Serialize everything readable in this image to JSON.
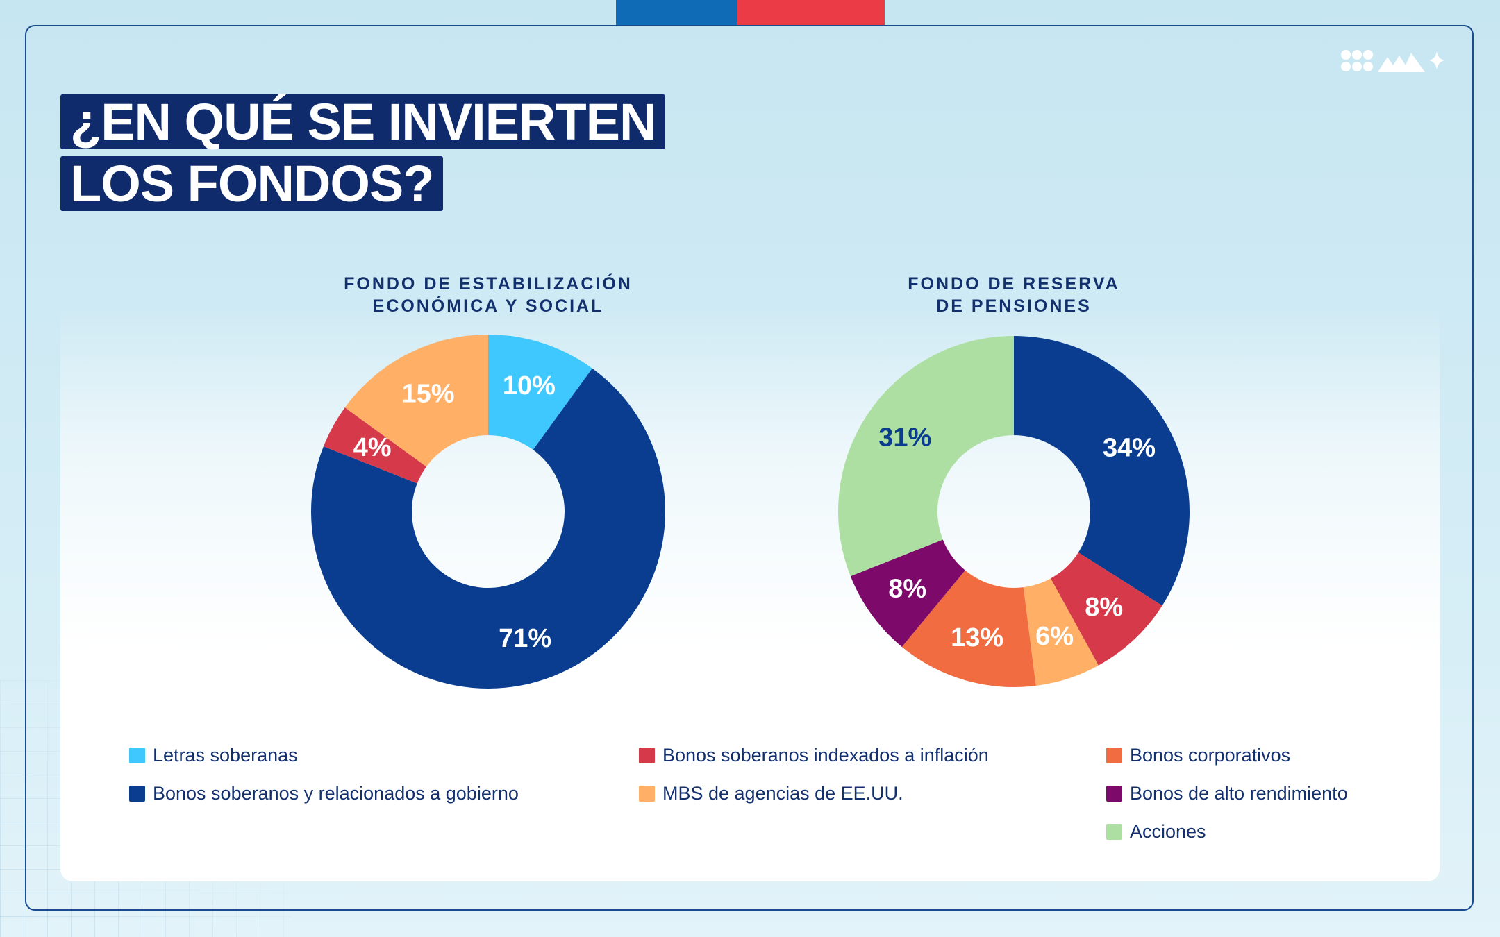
{
  "title_lines": [
    "¿EN QUÉ SE INVIERTEN",
    "LOS FONDOS?"
  ],
  "colors": {
    "letras": "#3ec8fd",
    "soberanos": "#0a3d8f",
    "indexados": "#d63a4a",
    "corporativos": "#f26c42",
    "mbs": "#ffb066",
    "alto": "#7d0a6b",
    "acciones": "#addfa3",
    "accent_blue": "#0f6bb5",
    "accent_red": "#ea3b47"
  },
  "logo_icon": "dots-mountains-star-logo",
  "chart_data": [
    {
      "type": "pie",
      "variant": "donut",
      "title": "FONDO DE ESTABILIZACIÓN ECONÓMICA Y SOCIAL",
      "title_lines": [
        "FONDO DE ESTABILIZACIÓN",
        "ECONÓMICA Y SOCIAL"
      ],
      "slices": [
        {
          "name": "Letras soberanas",
          "value": 10,
          "label": "10%",
          "color": "#3ec8fd",
          "label_color": "#ffffff"
        },
        {
          "name": "Bonos soberanos y relacionados a gobierno",
          "value": 71,
          "label": "71%",
          "color": "#0a3d8f",
          "label_color": "#ffffff"
        },
        {
          "name": "Bonos soberanos indexados a inflación",
          "value": 4,
          "label": "4%",
          "color": "#d63a4a",
          "label_color": "#ffffff"
        },
        {
          "name": "MBS de agencias de EE.UU.",
          "value": 15,
          "label": "15%",
          "color": "#ffb066",
          "label_color": "#ffffff"
        }
      ]
    },
    {
      "type": "pie",
      "variant": "donut",
      "title": "FONDO DE RESERVA DE PENSIONES",
      "title_lines": [
        "FONDO DE RESERVA",
        "DE PENSIONES"
      ],
      "slices": [
        {
          "name": "Bonos soberanos y relacionados a gobierno",
          "value": 34,
          "label": "34%",
          "color": "#0a3d8f",
          "label_color": "#ffffff"
        },
        {
          "name": "Bonos soberanos indexados a inflación",
          "value": 8,
          "label": "8%",
          "color": "#d63a4a",
          "label_color": "#ffffff"
        },
        {
          "name": "MBS de agencias de EE.UU.",
          "value": 6,
          "label": "6%",
          "color": "#ffb066",
          "label_color": "#ffffff"
        },
        {
          "name": "Bonos corporativos",
          "value": 13,
          "label": "13%",
          "color": "#f26c42",
          "label_color": "#ffffff"
        },
        {
          "name": "Bonos de alto rendimiento",
          "value": 8,
          "label": "8%",
          "color": "#7d0a6b",
          "label_color": "#ffffff"
        },
        {
          "name": "Acciones",
          "value": 31,
          "label": "31%",
          "color": "#addfa3",
          "label_color": "#0a3d8f"
        }
      ]
    }
  ],
  "legend": [
    {
      "label": "Letras soberanas",
      "color": "#3ec8fd"
    },
    {
      "label": "Bonos soberanos y relacionados a gobierno",
      "color": "#0a3d8f"
    },
    {
      "label": "Bonos soberanos indexados a inflación",
      "color": "#d63a4a"
    },
    {
      "label": "MBS de agencias de EE.UU.",
      "color": "#ffb066"
    },
    {
      "label": "Bonos corporativos",
      "color": "#f26c42"
    },
    {
      "label": "Bonos de alto rendimiento",
      "color": "#7d0a6b"
    },
    {
      "label": "Acciones",
      "color": "#addfa3"
    }
  ]
}
